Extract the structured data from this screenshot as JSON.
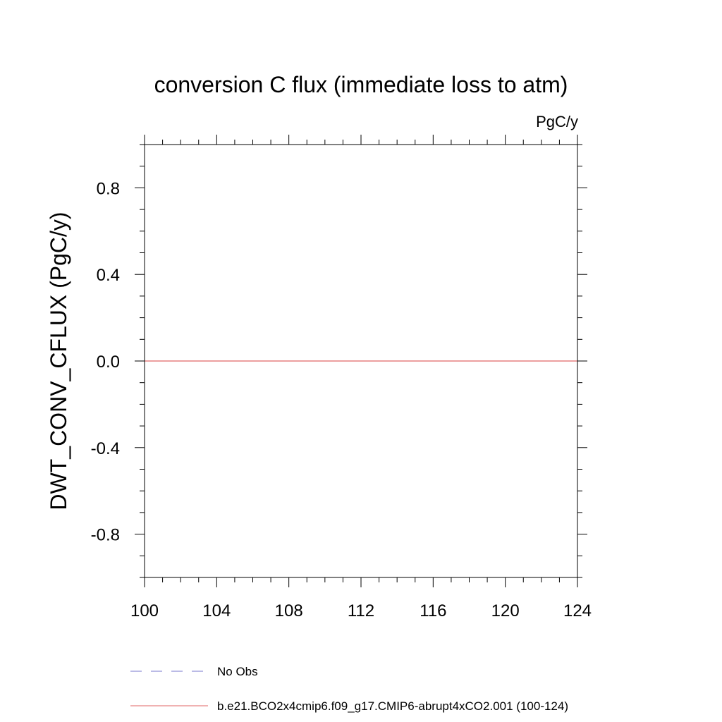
{
  "chart_data": {
    "type": "line",
    "title": "conversion C flux (immediate loss to atm)",
    "units_label": "PgC/y",
    "xlabel": "",
    "ylabel": "DWT_CONV_CFLUX  (PgC/y)",
    "xlim": [
      100,
      124
    ],
    "ylim": [
      -1.0,
      1.0
    ],
    "x_ticks": [
      100,
      104,
      108,
      112,
      116,
      120,
      124
    ],
    "x_tick_labels": [
      "100",
      "104",
      "108",
      "112",
      "116",
      "120",
      "124"
    ],
    "y_ticks": [
      -0.8,
      -0.4,
      0.0,
      0.4,
      0.8
    ],
    "y_tick_labels": [
      "-0.8",
      "-0.4",
      "0.0",
      "0.4",
      "0.8"
    ],
    "grid": false,
    "legend_position": "bottom",
    "series": [
      {
        "name": "b.e21.BCO2x4cmip6.f09_g17.CMIP6-abrupt4xCO2.001 (100-124)",
        "color": "#e06666",
        "style": "solid",
        "x": [
          100,
          101,
          102,
          103,
          104,
          105,
          106,
          107,
          108,
          109,
          110,
          111,
          112,
          113,
          114,
          115,
          116,
          117,
          118,
          119,
          120,
          121,
          122,
          123,
          124
        ],
        "y": [
          0,
          0,
          0,
          0,
          0,
          0,
          0,
          0,
          0,
          0,
          0,
          0,
          0,
          0,
          0,
          0,
          0,
          0,
          0,
          0,
          0,
          0,
          0,
          0,
          0
        ]
      }
    ],
    "legend": [
      {
        "label": "No Obs",
        "color": "#7777cc",
        "style": "dashed"
      },
      {
        "label": "b.e21.BCO2x4cmip6.f09_g17.CMIP6-abrupt4xCO2.001 (100-124)",
        "color": "#e06666",
        "style": "solid"
      }
    ]
  }
}
